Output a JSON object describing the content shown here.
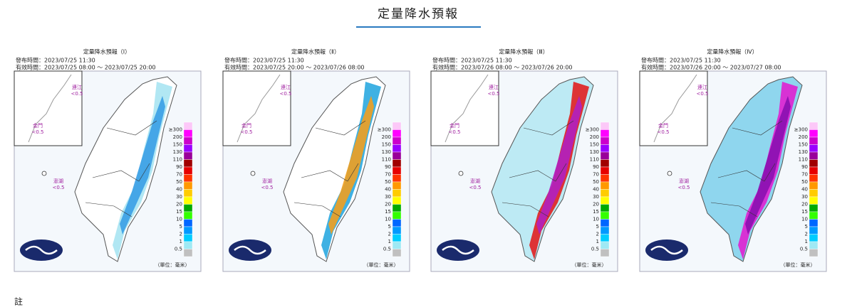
{
  "header": {
    "title": "定量降水預報"
  },
  "panels": [
    {
      "title": "定量降水預報（Ⅰ）",
      "issued": "發布時間：2023/07/25 11:30",
      "valid": "有效時間：2023/07/25 08:00 ～ 2023/07/25 20:00"
    },
    {
      "title": "定量降水預報（Ⅱ）",
      "issued": "發布時間：2023/07/25 11:30",
      "valid": "有效時間：2023/07/25 20:00 ～ 2023/07/26 08:00"
    },
    {
      "title": "定量降水預報（Ⅲ）",
      "issued": "發布時間：2023/07/25 11:30",
      "valid": "有效時間：2023/07/26 08:00 ～ 2023/07/26 20:00"
    },
    {
      "title": "定量降水預報（Ⅳ）",
      "issued": "發布時間：2023/07/25 11:30",
      "valid": "有效時間：2023/07/26 20:00 ～ 2023/07/27 08:00"
    }
  ],
  "islands": [
    {
      "name": "連江",
      "value": "<0.5"
    },
    {
      "name": "金門",
      "value": "<0.5"
    },
    {
      "name": "澎湖",
      "value": "<0.5"
    }
  ],
  "legend_labels": [
    "≥300",
    "200",
    "150",
    "130",
    "110",
    "90",
    "70",
    "50",
    "40",
    "30",
    "20",
    "15",
    "10",
    "5",
    "2",
    "1",
    "0.5"
  ],
  "unit": "（單位：毫米）",
  "footer": "註"
}
